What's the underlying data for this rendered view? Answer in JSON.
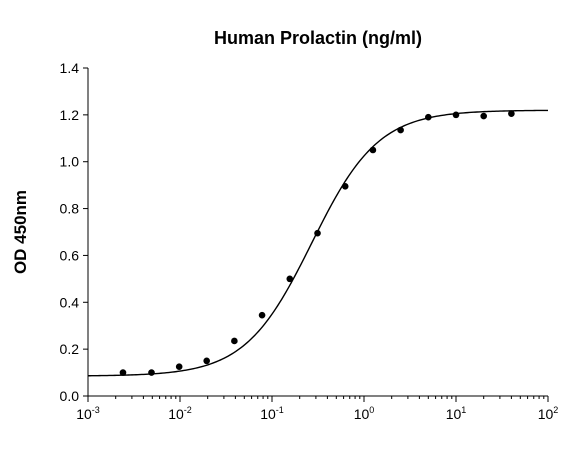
{
  "chart_data": {
    "type": "scatter",
    "title": "Human Prolactin (ng/ml)",
    "xlabel": "",
    "ylabel": "OD 450nm",
    "x_scale": "log",
    "xlim": [
      0.001,
      100
    ],
    "ylim": [
      0.0,
      1.4
    ],
    "x_ticks": [
      {
        "value": 0.001,
        "base": "10",
        "exp": "-3"
      },
      {
        "value": 0.01,
        "base": "10",
        "exp": "-2"
      },
      {
        "value": 0.1,
        "base": "10",
        "exp": "-1"
      },
      {
        "value": 1,
        "base": "10",
        "exp": "0"
      },
      {
        "value": 10,
        "base": "10",
        "exp": "1"
      },
      {
        "value": 100,
        "base": "10",
        "exp": "2"
      }
    ],
    "y_ticks": [
      "0.0",
      "0.2",
      "0.4",
      "0.6",
      "0.8",
      "1.0",
      "1.2",
      "1.4"
    ],
    "grid": false,
    "legend": "none",
    "series": [
      {
        "marker_color": "#000000",
        "points": [
          {
            "x": 0.0024,
            "y": 0.1
          },
          {
            "x": 0.0049,
            "y": 0.1
          },
          {
            "x": 0.0098,
            "y": 0.125
          },
          {
            "x": 0.0195,
            "y": 0.15
          },
          {
            "x": 0.039,
            "y": 0.235
          },
          {
            "x": 0.078,
            "y": 0.345
          },
          {
            "x": 0.156,
            "y": 0.5
          },
          {
            "x": 0.3125,
            "y": 0.695
          },
          {
            "x": 0.625,
            "y": 0.895
          },
          {
            "x": 1.25,
            "y": 1.05
          },
          {
            "x": 2.5,
            "y": 1.135
          },
          {
            "x": 5,
            "y": 1.19
          },
          {
            "x": 10,
            "y": 1.2
          },
          {
            "x": 20,
            "y": 1.195
          },
          {
            "x": 40,
            "y": 1.205
          }
        ]
      }
    ],
    "fit_curve": {
      "model": "4PL",
      "bottom": 0.085,
      "top": 1.22,
      "ec50": 0.27,
      "hill": 1.2,
      "color": "#000000"
    }
  }
}
